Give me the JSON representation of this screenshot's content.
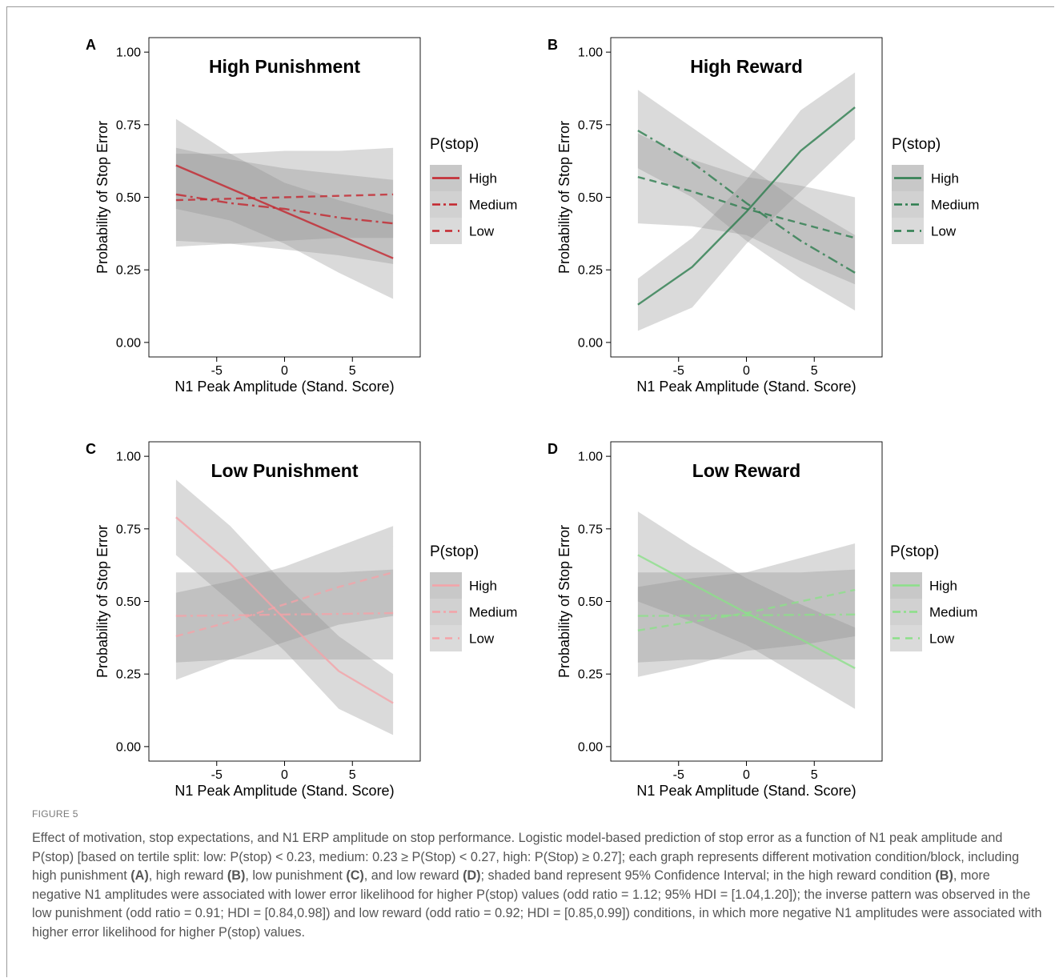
{
  "figure_label": "FIGURE 5",
  "caption_segments": [
    {
      "text": "Effect of motivation, stop expectations, and N1 ERP amplitude on stop performance. Logistic model-based prediction of stop error as a function of N1 peak amplitude and P(stop) [based on tertile split: low: P(stop) < 0.23, medium: 0.23 ≥ P(Stop) < 0.27, high: P(Stop) ≥ 0.27]; each graph represents different motivation condition/block, including high punishment ",
      "bold": false
    },
    {
      "text": "(A)",
      "bold": true
    },
    {
      "text": ", high reward ",
      "bold": false
    },
    {
      "text": "(B)",
      "bold": true
    },
    {
      "text": ", low punishment ",
      "bold": false
    },
    {
      "text": "(C)",
      "bold": true
    },
    {
      "text": ", and low reward ",
      "bold": false
    },
    {
      "text": "(D)",
      "bold": true
    },
    {
      "text": "; shaded band represent 95% Confidence Interval; in the high reward condition ",
      "bold": false
    },
    {
      "text": "(B)",
      "bold": true
    },
    {
      "text": ", more negative N1 amplitudes were associated with lower error likelihood for higher P(stop) values (odd ratio = 1.12; 95% HDI = [1.04,1.20]); the inverse pattern was observed in the low punishment (odd ratio = 0.91; HDI = [0.84,0.98]) and low reward (odd ratio = 0.92; HDI = [0.85,0.99]) conditions, in which more negative N1 amplitudes were associated with higher error likelihood for higher P(stop) values.",
      "bold": false
    }
  ],
  "chart_data": [
    {
      "panel": "A",
      "type": "line",
      "title": "High Punishment",
      "xlabel": "N1 Peak Amplitude (Stand. Score)",
      "ylabel": "Probability of Stop Error",
      "xlim": [
        -10,
        10
      ],
      "ylim": [
        -0.05,
        1.05
      ],
      "xticks": [
        -5,
        0,
        5
      ],
      "xtick_labels": [
        "-5",
        "0",
        "5"
      ],
      "yticks": [
        0,
        0.25,
        0.5,
        0.75,
        1
      ],
      "ytick_labels": [
        "0.00",
        "0.25",
        "0.50",
        "0.75",
        "1.00"
      ],
      "legend_title": "P(stop)",
      "legend_position": "right",
      "color": "#c4262e",
      "series": [
        {
          "name": "High",
          "dash": "solid",
          "x": [
            -8,
            -4,
            0,
            4,
            8
          ],
          "y": [
            0.61,
            0.53,
            0.45,
            0.37,
            0.29
          ],
          "lower": [
            0.46,
            0.42,
            0.34,
            0.24,
            0.15
          ],
          "upper": [
            0.77,
            0.65,
            0.55,
            0.49,
            0.44
          ]
        },
        {
          "name": "Medium",
          "dash": "dashdot",
          "x": [
            -8,
            -4,
            0,
            4,
            8
          ],
          "y": [
            0.51,
            0.48,
            0.46,
            0.43,
            0.41
          ],
          "lower": [
            0.35,
            0.34,
            0.32,
            0.3,
            0.27
          ],
          "upper": [
            0.67,
            0.63,
            0.6,
            0.58,
            0.56
          ]
        },
        {
          "name": "Low",
          "dash": "dashed",
          "x": [
            -8,
            -4,
            0,
            4,
            8
          ],
          "y": [
            0.49,
            0.495,
            0.5,
            0.505,
            0.51
          ],
          "lower": [
            0.33,
            0.34,
            0.35,
            0.36,
            0.36
          ],
          "upper": [
            0.65,
            0.65,
            0.66,
            0.66,
            0.67
          ]
        }
      ]
    },
    {
      "panel": "B",
      "type": "line",
      "title": "High Reward",
      "xlabel": "N1 Peak Amplitude (Stand. Score)",
      "ylabel": "Probability of Stop Error",
      "xlim": [
        -10,
        10
      ],
      "ylim": [
        -0.05,
        1.05
      ],
      "xticks": [
        -5,
        0,
        5
      ],
      "xtick_labels": [
        "-5",
        "0",
        "5"
      ],
      "yticks": [
        0,
        0.25,
        0.5,
        0.75,
        1
      ],
      "ytick_labels": [
        "0.00",
        "0.25",
        "0.50",
        "0.75",
        "1.00"
      ],
      "legend_title": "P(stop)",
      "legend_position": "right",
      "color": "#2c7d4e",
      "series": [
        {
          "name": "High",
          "dash": "solid",
          "x": [
            -8,
            -4,
            0,
            4,
            8
          ],
          "y": [
            0.13,
            0.26,
            0.45,
            0.66,
            0.81
          ],
          "lower": [
            0.04,
            0.12,
            0.34,
            0.52,
            0.7
          ],
          "upper": [
            0.22,
            0.36,
            0.56,
            0.8,
            0.93
          ]
        },
        {
          "name": "Medium",
          "dash": "dashdot",
          "x": [
            -8,
            -4,
            0,
            4,
            8
          ],
          "y": [
            0.73,
            0.62,
            0.48,
            0.35,
            0.24
          ],
          "lower": [
            0.6,
            0.5,
            0.35,
            0.22,
            0.11
          ],
          "upper": [
            0.87,
            0.74,
            0.61,
            0.48,
            0.37
          ]
        },
        {
          "name": "Low",
          "dash": "dashed",
          "x": [
            -8,
            -4,
            0,
            4,
            8
          ],
          "y": [
            0.57,
            0.52,
            0.46,
            0.41,
            0.36
          ],
          "lower": [
            0.41,
            0.4,
            0.37,
            0.28,
            0.2
          ],
          "upper": [
            0.72,
            0.63,
            0.57,
            0.54,
            0.5
          ]
        }
      ]
    },
    {
      "panel": "C",
      "type": "line",
      "title": "Low Punishment",
      "xlabel": "N1 Peak Amplitude (Stand. Score)",
      "ylabel": "Probability of Stop Error",
      "xlim": [
        -10,
        10
      ],
      "ylim": [
        -0.05,
        1.05
      ],
      "xticks": [
        -5,
        0,
        5
      ],
      "xtick_labels": [
        "-5",
        "0",
        "5"
      ],
      "yticks": [
        0,
        0.25,
        0.5,
        0.75,
        1
      ],
      "ytick_labels": [
        "0.00",
        "0.25",
        "0.50",
        "0.75",
        "1.00"
      ],
      "legend_title": "P(stop)",
      "legend_position": "right",
      "color": "#f4a3a8",
      "series": [
        {
          "name": "High",
          "dash": "solid",
          "x": [
            -8,
            -4,
            0,
            4,
            8
          ],
          "y": [
            0.79,
            0.63,
            0.44,
            0.26,
            0.15
          ],
          "lower": [
            0.66,
            0.5,
            0.33,
            0.13,
            0.04
          ],
          "upper": [
            0.92,
            0.76,
            0.56,
            0.38,
            0.25
          ]
        },
        {
          "name": "Medium",
          "dash": "dashdot",
          "x": [
            -8,
            -4,
            0,
            4,
            8
          ],
          "y": [
            0.45,
            0.452,
            0.455,
            0.457,
            0.46
          ],
          "lower": [
            0.29,
            0.3,
            0.3,
            0.3,
            0.3
          ],
          "upper": [
            0.6,
            0.6,
            0.6,
            0.6,
            0.61
          ]
        },
        {
          "name": "Low",
          "dash": "dashed",
          "x": [
            -8,
            -4,
            0,
            4,
            8
          ],
          "y": [
            0.38,
            0.43,
            0.49,
            0.55,
            0.6
          ],
          "lower": [
            0.23,
            0.3,
            0.36,
            0.42,
            0.45
          ],
          "upper": [
            0.53,
            0.57,
            0.62,
            0.69,
            0.76
          ]
        }
      ]
    },
    {
      "panel": "D",
      "type": "line",
      "title": "Low Reward",
      "xlabel": "N1 Peak Amplitude (Stand. Score)",
      "ylabel": "Probability of Stop Error",
      "xlim": [
        -10,
        10
      ],
      "ylim": [
        -0.05,
        1.05
      ],
      "xticks": [
        -5,
        0,
        5
      ],
      "xtick_labels": [
        "-5",
        "0",
        "5"
      ],
      "yticks": [
        0,
        0.25,
        0.5,
        0.75,
        1
      ],
      "ytick_labels": [
        "0.00",
        "0.25",
        "0.50",
        "0.75",
        "1.00"
      ],
      "legend_title": "P(stop)",
      "legend_position": "right",
      "color": "#8ce089",
      "series": [
        {
          "name": "High",
          "dash": "solid",
          "x": [
            -8,
            -4,
            0,
            4,
            8
          ],
          "y": [
            0.66,
            0.56,
            0.46,
            0.37,
            0.27
          ],
          "lower": [
            0.5,
            0.43,
            0.35,
            0.24,
            0.13
          ],
          "upper": [
            0.81,
            0.69,
            0.58,
            0.49,
            0.41
          ]
        },
        {
          "name": "Medium",
          "dash": "dashdot",
          "x": [
            -8,
            -4,
            0,
            4,
            8
          ],
          "y": [
            0.45,
            0.451,
            0.452,
            0.454,
            0.455
          ],
          "lower": [
            0.29,
            0.3,
            0.3,
            0.3,
            0.3
          ],
          "upper": [
            0.6,
            0.6,
            0.6,
            0.6,
            0.61
          ]
        },
        {
          "name": "Low",
          "dash": "dashed",
          "x": [
            -8,
            -4,
            0,
            4,
            8
          ],
          "y": [
            0.4,
            0.43,
            0.46,
            0.5,
            0.54
          ],
          "lower": [
            0.24,
            0.28,
            0.33,
            0.35,
            0.38
          ],
          "upper": [
            0.55,
            0.58,
            0.6,
            0.65,
            0.7
          ]
        }
      ]
    }
  ]
}
